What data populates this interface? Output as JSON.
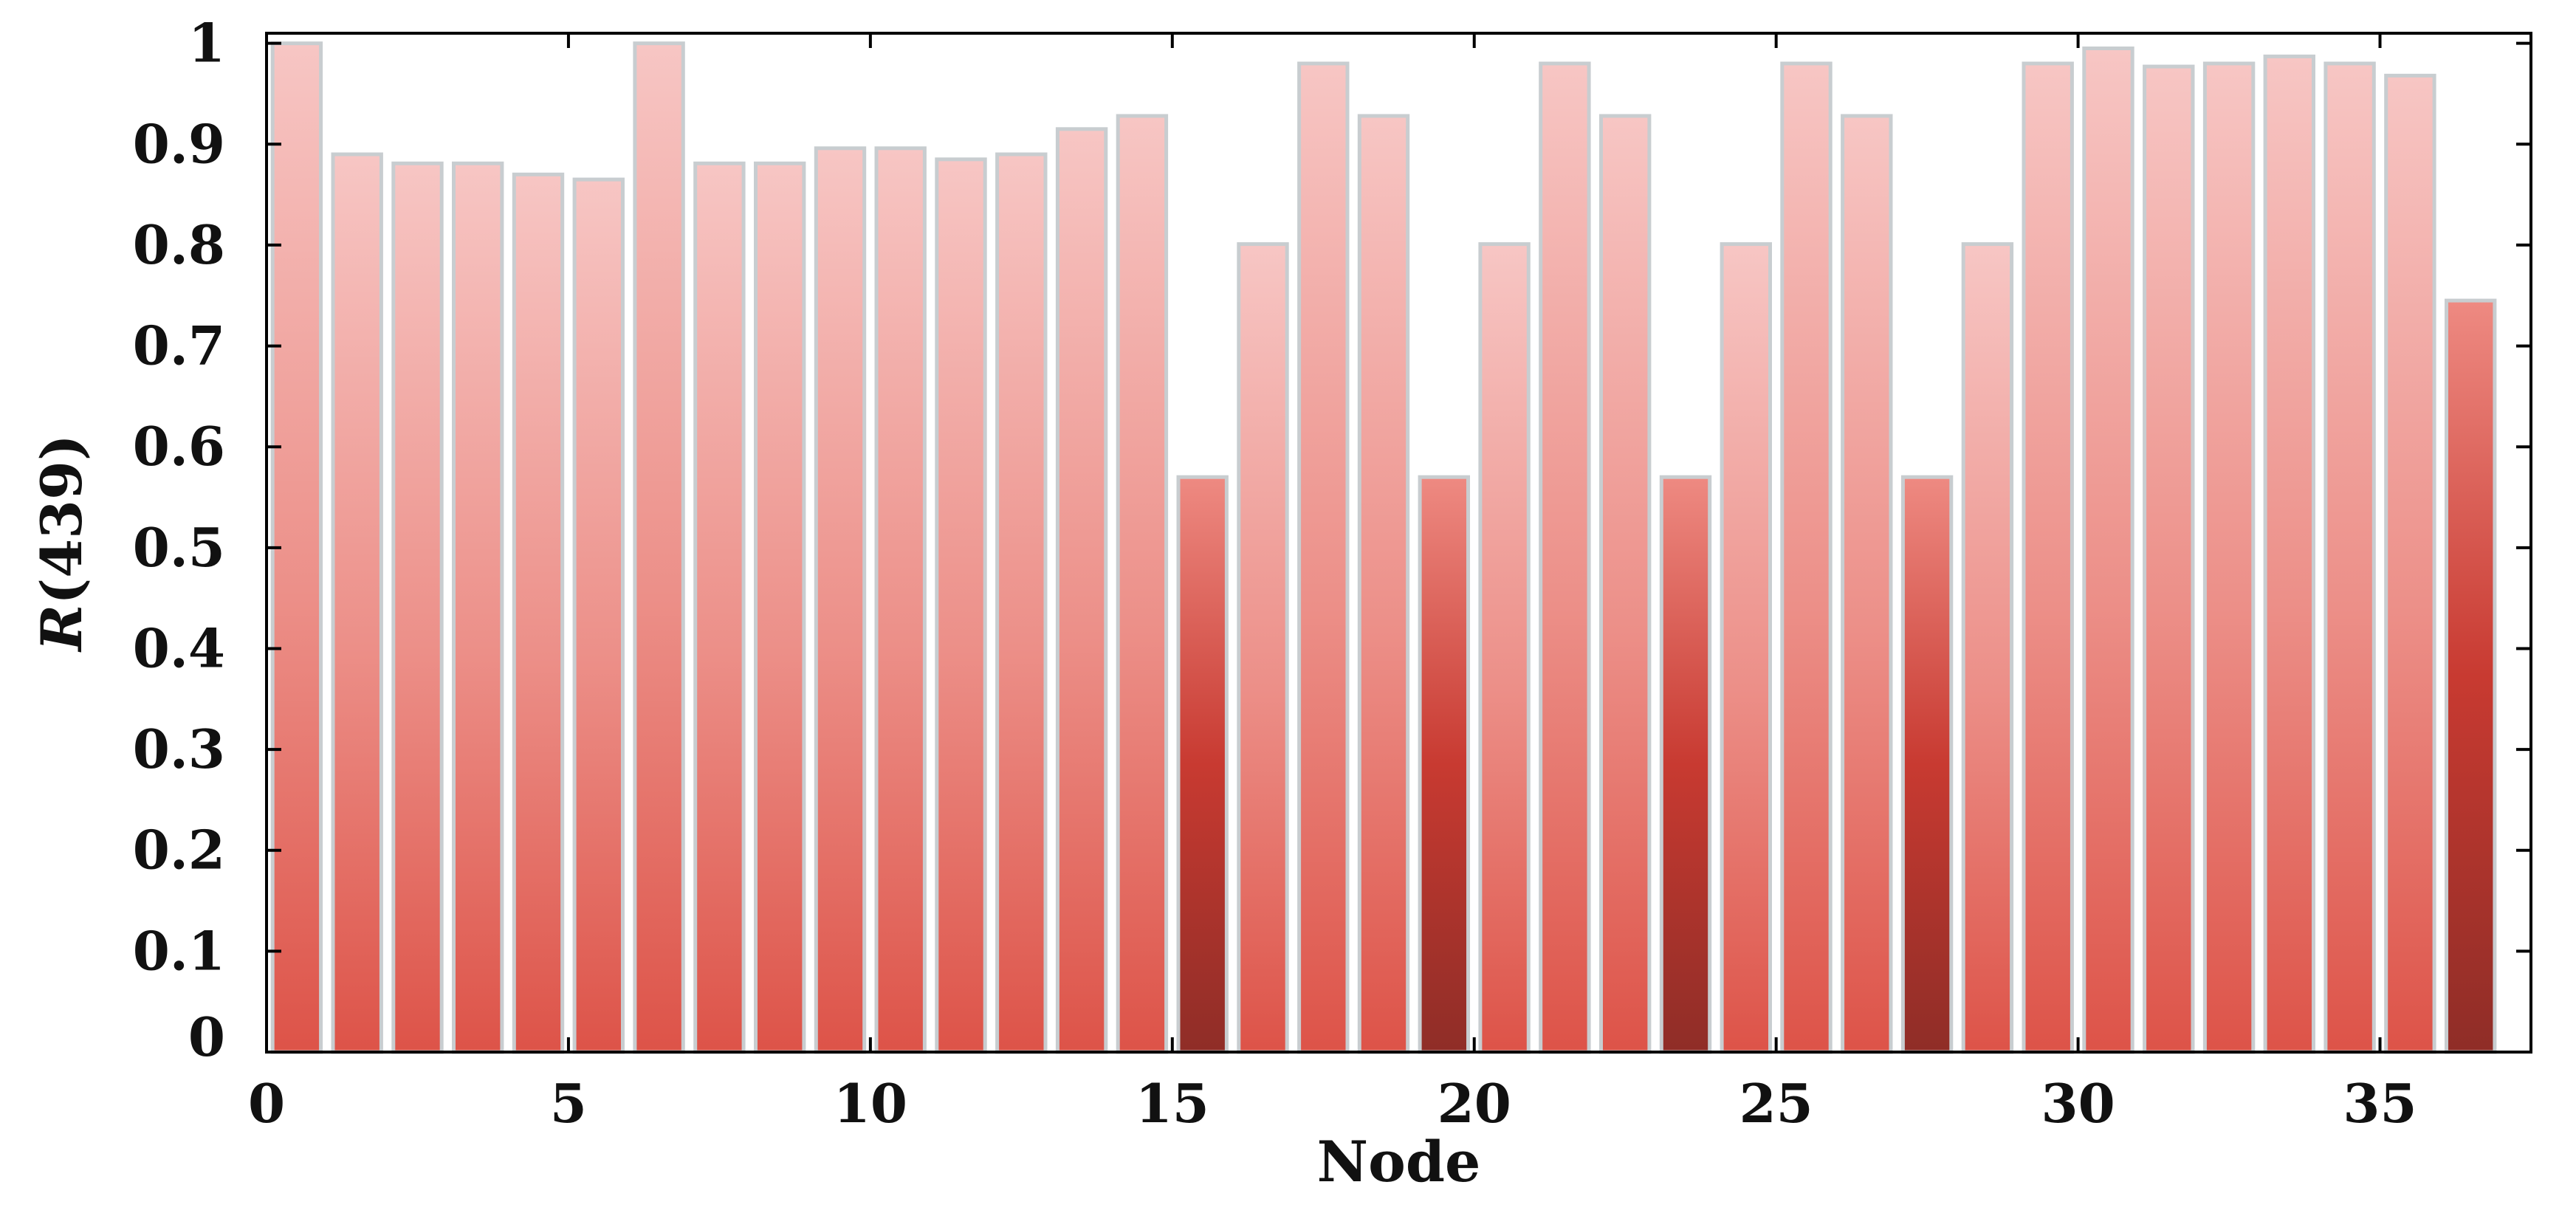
{
  "chart_data": {
    "type": "bar",
    "xlabel": "Node",
    "ylabel": {
      "symbol": "R",
      "arg": "(439)"
    },
    "xlim": [
      0,
      37.5
    ],
    "ylim": [
      0,
      1.01
    ],
    "x_ticks": [
      0,
      5,
      10,
      15,
      20,
      25,
      30,
      35
    ],
    "x_tick_labels": [
      "0",
      "5",
      "10",
      "15",
      "20",
      "25",
      "30",
      "35"
    ],
    "y_ticks": [
      0,
      0.1,
      0.2,
      0.3,
      0.4,
      0.5,
      0.6,
      0.7,
      0.8,
      0.9,
      1
    ],
    "y_tick_labels": [
      "0",
      "0.1",
      "0.2",
      "0.3",
      "0.4",
      "0.5",
      "0.6",
      "0.7",
      "0.8",
      "0.9",
      "1"
    ],
    "grid": false,
    "legend": "none",
    "x": [
      1,
      2,
      3,
      4,
      5,
      6,
      7,
      8,
      9,
      10,
      11,
      12,
      13,
      14,
      15,
      16,
      17,
      18,
      19,
      20,
      21,
      22,
      23,
      24,
      25,
      26,
      27,
      28,
      29,
      30,
      31,
      32,
      33,
      34,
      35,
      36,
      37
    ],
    "values": [
      1.0,
      0.89,
      0.881,
      0.881,
      0.87,
      0.865,
      1.0,
      0.881,
      0.881,
      0.896,
      0.896,
      0.885,
      0.89,
      0.915,
      0.928,
      0.57,
      0.801,
      0.98,
      0.928,
      0.57,
      0.801,
      0.98,
      0.928,
      0.57,
      0.801,
      0.98,
      0.928,
      0.57,
      0.801,
      0.98,
      0.995,
      0.977,
      0.98,
      0.987,
      0.98,
      0.968,
      0.745
    ],
    "colors": {
      "bar_top_light": "#f7c6c4",
      "bar_bottom": "#dd5348",
      "dark_bar_top": "#ee8a82",
      "dark_bar_mid": "#c83a31",
      "dark_bar_bottom": "#8f2d27",
      "bar_outline": "#c8cdd0",
      "axis": "#000000"
    }
  }
}
